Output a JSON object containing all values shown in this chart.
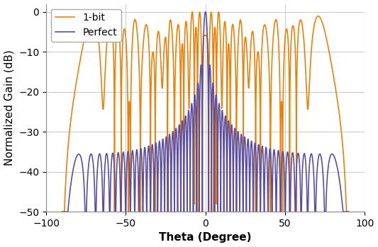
{
  "title": "",
  "xlabel": "Theta (Degree)",
  "ylabel": "Normalized Gain (dB)",
  "xlim": [
    -100,
    100
  ],
  "ylim": [
    -50,
    2
  ],
  "xticks": [
    -100,
    -50,
    0,
    50,
    100
  ],
  "yticks": [
    0,
    -10,
    -20,
    -30,
    -40,
    -50
  ],
  "perfect_color": "#5B4EA0",
  "onebit_color": "#E8820A",
  "perfect_label": "Perfect",
  "onebit_label": "1-bit",
  "grid_color": "#cccccc",
  "background_color": "#ffffff",
  "linewidth": 1.2,
  "xlabel_fontsize": 11,
  "ylabel_fontsize": 11,
  "tick_fontsize": 10,
  "legend_fontsize": 10
}
